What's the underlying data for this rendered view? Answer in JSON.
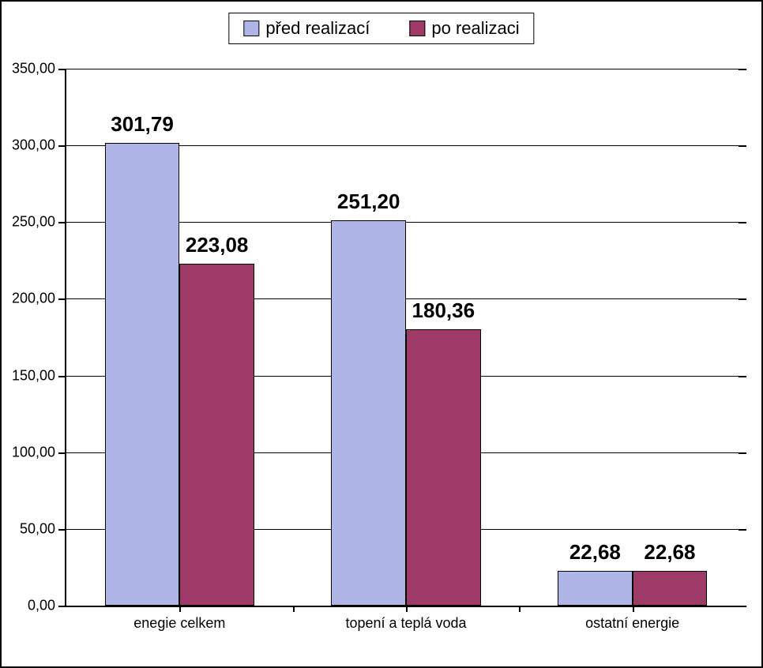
{
  "chart": {
    "type": "bar-grouped",
    "background_color": "#ffffff",
    "border_color": "#000000",
    "legend": {
      "items": [
        {
          "label": "před realizací",
          "color": "#b0b5e8"
        },
        {
          "label": "po realizaci",
          "color": "#9d3a68"
        }
      ],
      "fontsize": 22
    },
    "y_axis": {
      "min": 0,
      "max": 350,
      "ticks": [
        0,
        50,
        100,
        150,
        200,
        250,
        300,
        350
      ],
      "tick_labels": [
        "0,00",
        "50,00",
        "100,00",
        "150,00",
        "200,00",
        "250,00",
        "300,00",
        "350,00"
      ],
      "label_fontsize": 18,
      "grid_color": "#000000"
    },
    "categories": [
      "enegie celkem",
      "topení a teplá voda",
      "ostatní energie"
    ],
    "category_fontsize": 18,
    "series": [
      {
        "name": "před realizací",
        "color": "#b0b5e8",
        "values": [
          301.79,
          251.2,
          22.68
        ],
        "value_labels": [
          "301,79",
          "251,20",
          "22,68"
        ]
      },
      {
        "name": "po realizaci",
        "color": "#9d3a68",
        "values": [
          223.08,
          180.36,
          22.68
        ],
        "value_labels": [
          "223,08",
          "180,36",
          "22,68"
        ]
      }
    ],
    "bar_label_fontsize": 26,
    "bar_label_fontweight": "bold",
    "bar_width_ratio": 0.33,
    "group_gap_ratio": 0.0
  }
}
